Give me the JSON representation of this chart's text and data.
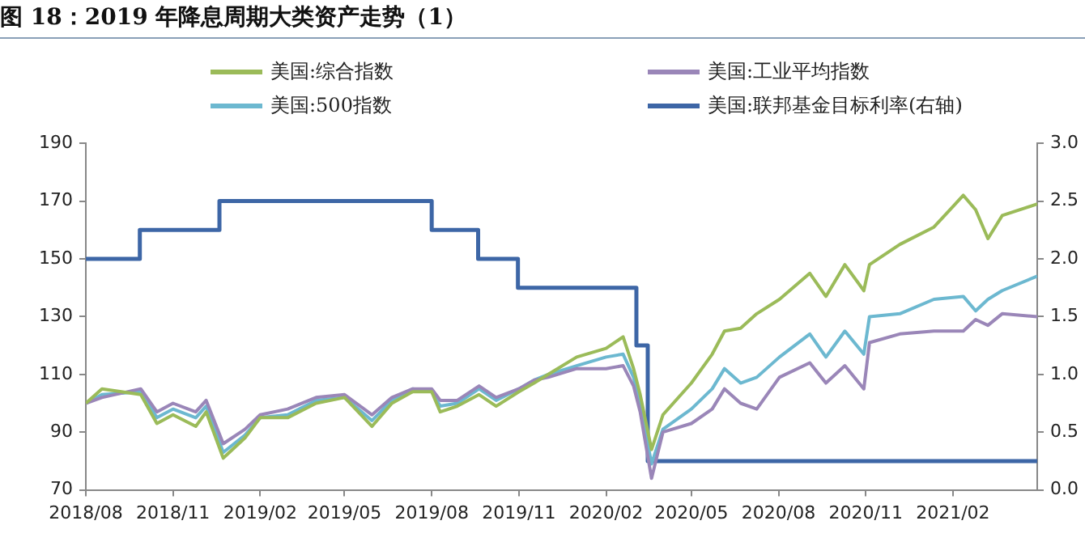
{
  "chart_data": {
    "type": "line",
    "title": "图 18：2019 年降息周期大类资产走势（1）",
    "legend": "top",
    "grid": false,
    "marker": "none",
    "x": [
      "2018-08-01",
      "2018-08-18",
      "2018-09-28",
      "2018-10-15",
      "2018-11-01",
      "2018-11-25",
      "2018-12-06",
      "2018-12-24",
      "2019-01-16",
      "2019-02-01",
      "2019-03-02",
      "2019-04-01",
      "2019-05-01",
      "2019-05-30",
      "2019-06-20",
      "2019-07-12",
      "2019-08-01",
      "2019-08-10",
      "2019-08-28",
      "2019-09-20",
      "2019-10-08",
      "2019-11-01",
      "2019-11-17",
      "2019-12-02",
      "2020-01-01",
      "2020-02-01",
      "2020-02-19",
      "2020-03-01",
      "2020-03-08",
      "2020-03-20",
      "2020-04-01",
      "2020-05-01",
      "2020-05-23",
      "2020-06-05",
      "2020-06-22",
      "2020-07-09",
      "2020-08-02",
      "2020-09-03",
      "2020-09-20",
      "2020-10-10",
      "2020-10-30",
      "2020-11-05",
      "2020-12-07",
      "2021-01-12",
      "2021-02-12",
      "2021-02-25",
      "2021-03-10",
      "2021-03-25",
      "2021-05-01"
    ],
    "xlim": [
      "2018-08-01",
      "2021-05-01"
    ],
    "xticks": [
      {
        "value": "2018-08",
        "label": "2018/08"
      },
      {
        "value": "2018-11",
        "label": "2018/11"
      },
      {
        "value": "2019-02",
        "label": "2019/02"
      },
      {
        "value": "2019-05",
        "label": "2019/05"
      },
      {
        "value": "2019-08",
        "label": "2019/08"
      },
      {
        "value": "2019-11",
        "label": "2019/11"
      },
      {
        "value": "2020-02",
        "label": "2020/02"
      },
      {
        "value": "2020-05",
        "label": "2020/05"
      },
      {
        "value": "2020-08",
        "label": "2020/08"
      },
      {
        "value": "2020-11",
        "label": "2020/11"
      },
      {
        "value": "2021-02",
        "label": "2021/02"
      }
    ],
    "ylim": [
      70,
      190
    ],
    "yticks": [
      70,
      90,
      110,
      130,
      150,
      170,
      190
    ],
    "y2lim": [
      0,
      3
    ],
    "y2ticks": [
      {
        "value": 0,
        "label": "0.0"
      },
      {
        "value": 0.5,
        "label": "0.5"
      },
      {
        "value": 1,
        "label": "1.0"
      },
      {
        "value": 1.5,
        "label": "1.5"
      },
      {
        "value": 2,
        "label": "2.0"
      },
      {
        "value": 2.5,
        "label": "2.5"
      },
      {
        "value": 3,
        "label": "3.0"
      }
    ],
    "series": [
      {
        "name": "美国:综合指数",
        "color": "#9bbb59",
        "values": [
          100,
          105,
          103,
          93,
          96,
          92,
          97,
          81,
          88,
          95,
          95,
          100,
          102,
          92,
          100,
          104,
          104,
          97,
          99,
          103,
          99,
          104,
          107,
          110,
          116,
          119,
          123,
          112,
          103,
          84,
          96,
          107,
          117,
          125,
          126,
          131,
          136,
          145,
          137,
          148,
          139,
          148,
          155,
          161,
          172,
          167,
          157,
          165,
          169
        ]
      },
      {
        "name": "美国:工业平均指数",
        "color": "#9a86b8",
        "values": [
          100,
          102,
          105,
          97,
          100,
          97,
          101,
          86,
          91,
          96,
          98,
          102,
          103,
          96,
          102,
          105,
          105,
          101,
          101,
          106,
          102,
          105,
          108,
          109,
          112,
          112,
          113,
          106,
          97,
          74,
          90,
          93,
          98,
          105,
          100,
          98,
          109,
          114,
          107,
          113,
          105,
          121,
          124,
          125,
          125,
          129,
          127,
          131,
          130
        ]
      },
      {
        "name": "美国:500指数",
        "color": "#6cb8d0",
        "values": [
          100,
          103,
          104,
          95,
          98,
          95,
          99,
          83,
          89,
          95,
          96,
          101,
          102,
          94,
          101,
          105,
          104,
          99,
          100,
          105,
          101,
          105,
          108,
          110,
          113,
          116,
          117,
          109,
          100,
          79,
          91,
          98,
          105,
          112,
          107,
          109,
          116,
          124,
          116,
          125,
          117,
          130,
          131,
          136,
          137,
          132,
          136,
          139,
          144
        ]
      },
      {
        "name": "美国:联邦基金目标利率(右轴)",
        "type": "step",
        "axis": "y2",
        "color": "#3d66a6",
        "x": [
          "2018-08-01",
          "2018-09-27",
          "2018-12-20",
          "2019-08-01",
          "2019-09-19",
          "2019-10-31",
          "2020-03-04",
          "2020-03-16",
          "2021-05-01"
        ],
        "values": [
          2,
          2.25,
          2.5,
          2.25,
          2,
          1.75,
          1.25,
          0.25,
          0.25
        ]
      }
    ]
  }
}
